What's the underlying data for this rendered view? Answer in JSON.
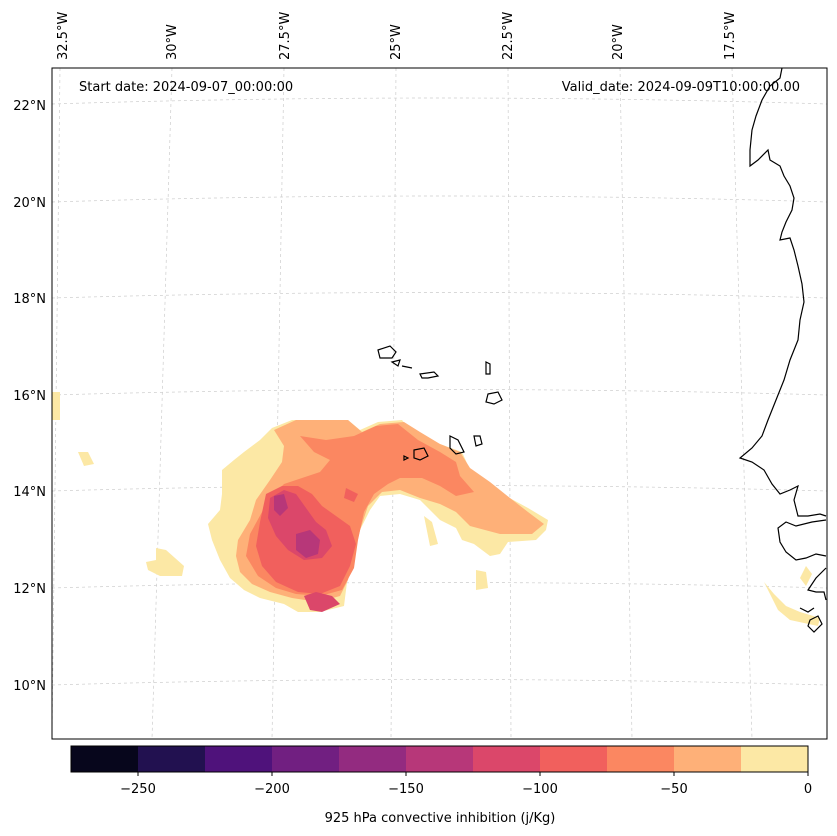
{
  "map": {
    "start_date": "Start date: 2024-09-07_00:00:00",
    "valid_date": "Valid_date: 2024-09-09T10:00:00.00",
    "lon_labels": [
      "32.5°W",
      "30°W",
      "27.5°W",
      "25°W",
      "22.5°W",
      "20°W",
      "17.5°W"
    ],
    "lat_labels": [
      "22°N",
      "20°N",
      "18°N",
      "16°N",
      "14°N",
      "12°N",
      "10°N"
    ]
  },
  "colorbar": {
    "label": "925 hPa convective inhibition (j/Kg)",
    "ticks": [
      "−250",
      "−200",
      "−150",
      "−100",
      "−50",
      "0"
    ],
    "levels": [
      -275,
      -250,
      -225,
      -200,
      -175,
      -150,
      -125,
      -100,
      -75,
      -50,
      -25,
      0
    ],
    "colors": [
      "#07061c",
      "#221150",
      "#4f127b",
      "#711f81",
      "#932b80",
      "#b73779",
      "#db476a",
      "#f1605d",
      "#fb8761",
      "#feb078",
      "#fce8a5"
    ]
  }
}
